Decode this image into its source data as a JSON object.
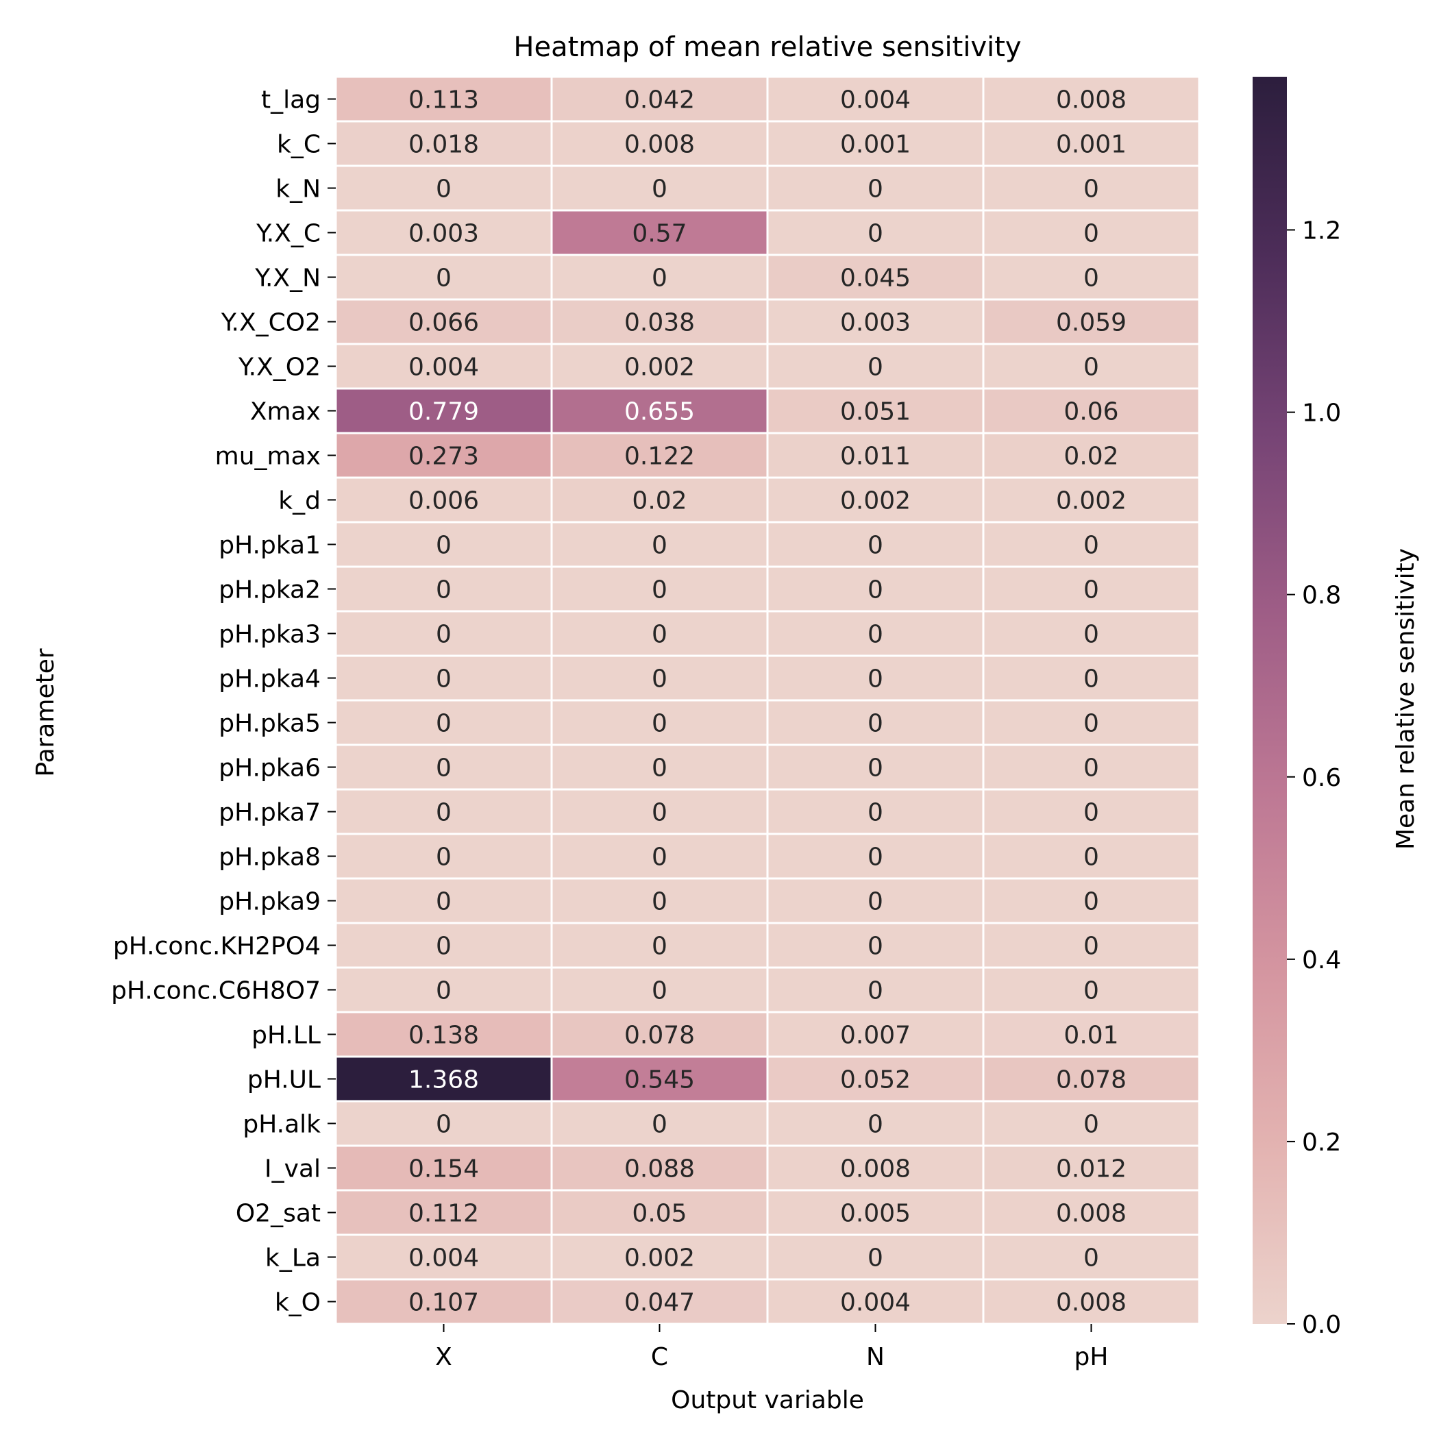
{
  "chart_data": {
    "type": "heatmap",
    "title": "Heatmap of mean relative sensitivity",
    "xlabel": "Output variable",
    "ylabel": "Parameter",
    "colorbar_label": "Mean relative sensitivity",
    "x": [
      "X",
      "C",
      "N",
      "pH"
    ],
    "y": [
      "t_lag",
      "k_C",
      "k_N",
      "Y.X_C",
      "Y.X_N",
      "Y.X_CO2",
      "Y.X_O2",
      "Xmax",
      "mu_max",
      "k_d",
      "pH.pka1",
      "pH.pka2",
      "pH.pka3",
      "pH.pka4",
      "pH.pka5",
      "pH.pka6",
      "pH.pka7",
      "pH.pka8",
      "pH.pka9",
      "pH.conc.KH2PO4",
      "pH.conc.C6H8O7",
      "pH.LL",
      "pH.UL",
      "pH.alk",
      "I_val",
      "O2_sat",
      "k_La",
      "k_O"
    ],
    "values": [
      [
        "0.113",
        "0.042",
        "0.004",
        "0.008"
      ],
      [
        "0.018",
        "0.008",
        "0.001",
        "0.001"
      ],
      [
        "0",
        "0",
        "0",
        "0"
      ],
      [
        "0.003",
        "0.57",
        "0",
        "0"
      ],
      [
        "0",
        "0",
        "0.045",
        "0"
      ],
      [
        "0.066",
        "0.038",
        "0.003",
        "0.059"
      ],
      [
        "0.004",
        "0.002",
        "0",
        "0"
      ],
      [
        "0.779",
        "0.655",
        "0.051",
        "0.06"
      ],
      [
        "0.273",
        "0.122",
        "0.011",
        "0.02"
      ],
      [
        "0.006",
        "0.02",
        "0.002",
        "0.002"
      ],
      [
        "0",
        "0",
        "0",
        "0"
      ],
      [
        "0",
        "0",
        "0",
        "0"
      ],
      [
        "0",
        "0",
        "0",
        "0"
      ],
      [
        "0",
        "0",
        "0",
        "0"
      ],
      [
        "0",
        "0",
        "0",
        "0"
      ],
      [
        "0",
        "0",
        "0",
        "0"
      ],
      [
        "0",
        "0",
        "0",
        "0"
      ],
      [
        "0",
        "0",
        "0",
        "0"
      ],
      [
        "0",
        "0",
        "0",
        "0"
      ],
      [
        "0",
        "0",
        "0",
        "0"
      ],
      [
        "0",
        "0",
        "0",
        "0"
      ],
      [
        "0.138",
        "0.078",
        "0.007",
        "0.01"
      ],
      [
        "1.368",
        "0.545",
        "0.052",
        "0.078"
      ],
      [
        "0",
        "0",
        "0",
        "0"
      ],
      [
        "0.154",
        "0.088",
        "0.008",
        "0.012"
      ],
      [
        "0.112",
        "0.05",
        "0.005",
        "0.008"
      ],
      [
        "0.004",
        "0.002",
        "0",
        "0"
      ],
      [
        "0.107",
        "0.047",
        "0.004",
        "0.008"
      ]
    ],
    "color_range": [
      0,
      1.368
    ],
    "colorbar_ticks": [
      "0.0",
      "0.2",
      "0.4",
      "0.6",
      "0.8",
      "1.0",
      "1.2"
    ],
    "colormap": [
      "#ecd3cc",
      "#e3b3b1",
      "#d495a0",
      "#bd7894",
      "#9e5d86",
      "#764475",
      "#4d2d59",
      "#2c1e3d"
    ],
    "grid": false,
    "legend": "colorbar-right"
  }
}
